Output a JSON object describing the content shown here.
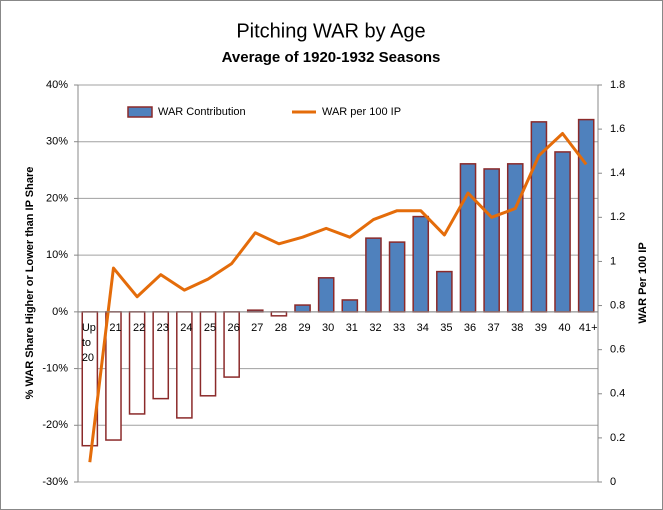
{
  "chart_data": {
    "type": "bar-line",
    "title": "Pitching WAR by Age",
    "subtitle": "Average of 1920-1932 Seasons",
    "ylabel": "% WAR Share  Higher or Lower than IP Share",
    "y2label": "WAR Per 100 IP",
    "categories": [
      "Up to 20",
      "21",
      "22",
      "23",
      "24",
      "25",
      "26",
      "27",
      "28",
      "29",
      "30",
      "31",
      "32",
      "33",
      "34",
      "35",
      "36",
      "37",
      "38",
      "39",
      "40",
      "41+"
    ],
    "series": [
      {
        "name": "WAR Contribution",
        "type": "bar",
        "color": "#4f81bd",
        "negative_color": "#ffffff",
        "border_color": "#8b2a2a",
        "values": [
          -23.6,
          -22.6,
          -18.0,
          -15.3,
          -18.7,
          -14.8,
          -11.5,
          0.3,
          -0.7,
          1.2,
          6.0,
          2.1,
          13.0,
          12.3,
          16.8,
          7.1,
          26.1,
          25.2,
          26.1,
          33.5,
          28.2,
          33.9
        ]
      },
      {
        "name": "WAR per 100 IP",
        "type": "line",
        "axis": "y2",
        "color": "#e46c0a",
        "values": [
          0.09,
          0.97,
          0.84,
          0.94,
          0.87,
          0.92,
          0.99,
          1.13,
          1.08,
          1.11,
          1.15,
          1.11,
          1.19,
          1.23,
          1.23,
          1.12,
          1.31,
          1.2,
          1.24,
          1.48,
          1.58,
          1.44
        ]
      }
    ],
    "ylim": [
      -30,
      40
    ],
    "yticks": [
      {
        "value": -30,
        "label": "-30%"
      },
      {
        "value": -20,
        "label": "-20%"
      },
      {
        "value": -10,
        "label": "-10%"
      },
      {
        "value": 0,
        "label": "0%"
      },
      {
        "value": 10,
        "label": "10%"
      },
      {
        "value": 20,
        "label": "20%"
      },
      {
        "value": 30,
        "label": "30%"
      },
      {
        "value": 40,
        "label": "40%"
      }
    ],
    "y2lim": [
      0,
      1.8
    ],
    "y2ticks": [
      0,
      0.2,
      0.4,
      0.6,
      0.8,
      1,
      1.2,
      1.4,
      1.6,
      1.8
    ],
    "grid": true,
    "legend": "top"
  }
}
